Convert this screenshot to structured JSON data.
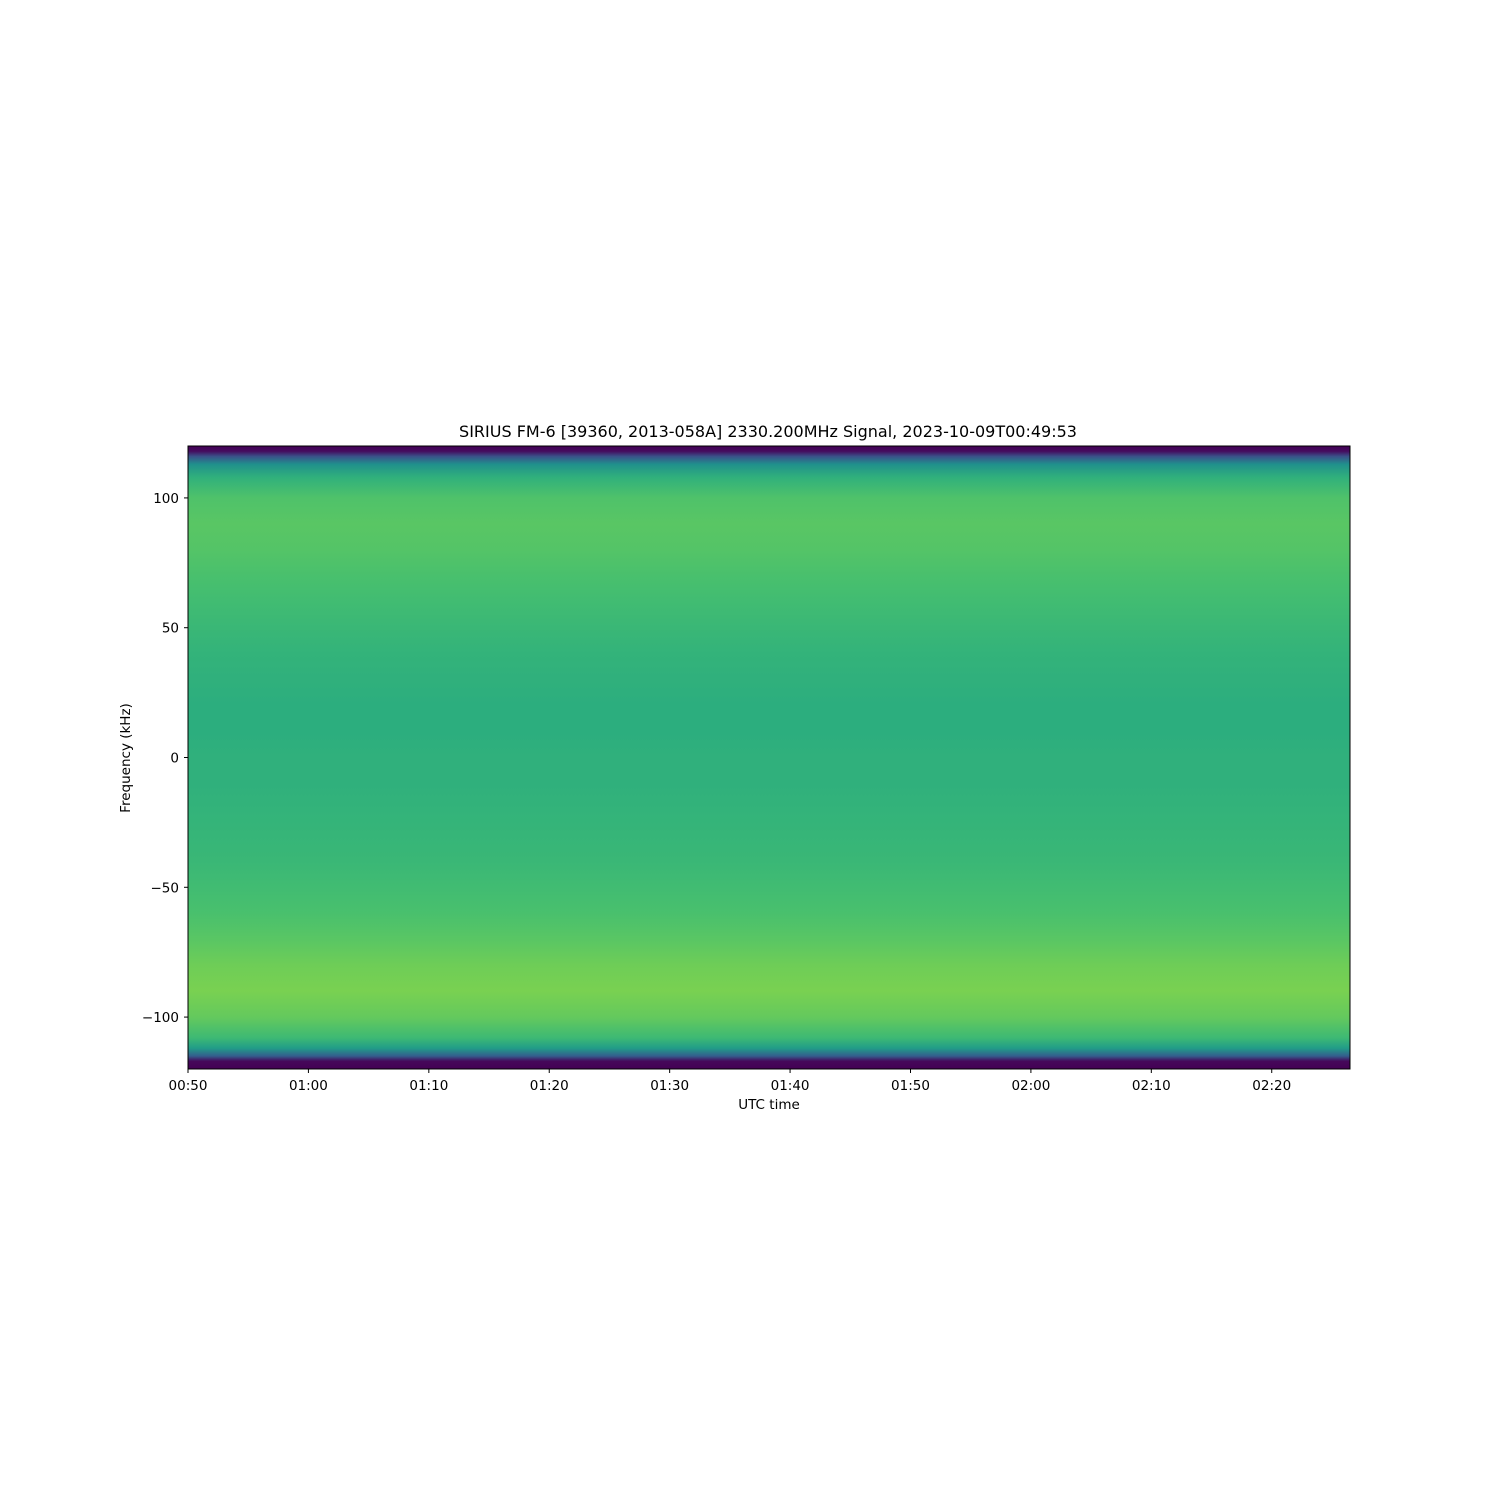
{
  "chart_data": {
    "type": "heatmap",
    "title": "SIRIUS FM-6 [39360, 2013-058A] 2330.200MHz Signal, 2023-10-09T00:49:53",
    "xlabel": "UTC time",
    "ylabel": "Frequency (kHz)",
    "x_start": "00:50",
    "x_end": "02:26",
    "xlim_minutes": [
      0,
      96.5
    ],
    "ylim": [
      -120,
      120
    ],
    "x_ticks": [
      {
        "label": "00:50",
        "minutes": 0
      },
      {
        "label": "01:00",
        "minutes": 10
      },
      {
        "label": "01:10",
        "minutes": 20
      },
      {
        "label": "01:20",
        "minutes": 30
      },
      {
        "label": "01:30",
        "minutes": 40
      },
      {
        "label": "01:40",
        "minutes": 50
      },
      {
        "label": "01:50",
        "minutes": 60
      },
      {
        "label": "02:00",
        "minutes": 70
      },
      {
        "label": "02:10",
        "minutes": 80
      },
      {
        "label": "02:20",
        "minutes": 90
      }
    ],
    "y_ticks": [
      {
        "label": "100",
        "value": 100
      },
      {
        "label": "50",
        "value": 50
      },
      {
        "label": "0",
        "value": 0
      },
      {
        "label": "−50",
        "value": -50
      },
      {
        "label": "−100",
        "value": -100
      }
    ],
    "colormap": "viridis",
    "frequency_profile": [
      {
        "freq": -120,
        "level": 0.0
      },
      {
        "freq": -117,
        "level": 0.02
      },
      {
        "freq": -115,
        "level": 0.3
      },
      {
        "freq": -112,
        "level": 0.55
      },
      {
        "freq": -108,
        "level": 0.68
      },
      {
        "freq": -100,
        "level": 0.76
      },
      {
        "freq": -90,
        "level": 0.8
      },
      {
        "freq": -80,
        "level": 0.78
      },
      {
        "freq": -70,
        "level": 0.74
      },
      {
        "freq": -60,
        "level": 0.71
      },
      {
        "freq": -50,
        "level": 0.69
      },
      {
        "freq": -40,
        "level": 0.67
      },
      {
        "freq": -30,
        "level": 0.66
      },
      {
        "freq": -20,
        "level": 0.65
      },
      {
        "freq": -10,
        "level": 0.64
      },
      {
        "freq": 0,
        "level": 0.64
      },
      {
        "freq": 10,
        "level": 0.63
      },
      {
        "freq": 20,
        "level": 0.63
      },
      {
        "freq": 30,
        "level": 0.64
      },
      {
        "freq": 40,
        "level": 0.65
      },
      {
        "freq": 50,
        "level": 0.67
      },
      {
        "freq": 60,
        "level": 0.69
      },
      {
        "freq": 70,
        "level": 0.71
      },
      {
        "freq": 80,
        "level": 0.73
      },
      {
        "freq": 90,
        "level": 0.74
      },
      {
        "freq": 100,
        "level": 0.72
      },
      {
        "freq": 108,
        "level": 0.64
      },
      {
        "freq": 113,
        "level": 0.5
      },
      {
        "freq": 116,
        "level": 0.25
      },
      {
        "freq": 118,
        "level": 0.03
      },
      {
        "freq": 120,
        "level": 0.0
      }
    ],
    "grid": false
  }
}
